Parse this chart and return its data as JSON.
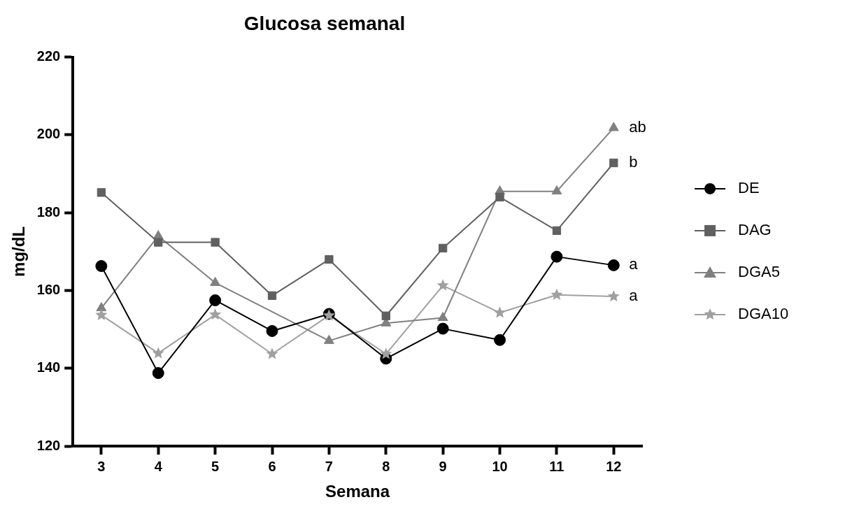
{
  "chart_data": {
    "type": "line",
    "title": "Glucosa semanal",
    "xlabel": "Semana",
    "ylabel": "mg/dL",
    "categories": [
      "3",
      "4",
      "5",
      "6",
      "7",
      "8",
      "9",
      "10",
      "11",
      "12"
    ],
    "series": [
      {
        "name": "DE",
        "color": "#000000",
        "marker": "circle",
        "values": [
          166.3,
          138.8,
          157.5,
          149.6,
          154.0,
          142.5,
          150.2,
          147.3,
          168.7,
          166.5
        ]
      },
      {
        "name": "DAG",
        "color": "#606060",
        "marker": "square",
        "values": [
          185.2,
          172.4,
          172.4,
          158.7,
          168.0,
          153.5,
          170.9,
          184.0,
          175.4,
          192.8
        ]
      },
      {
        "name": "DGA5",
        "color": "#808080",
        "marker": "triangle",
        "values": [
          155.5,
          174.0,
          162.0,
          null,
          147.1,
          151.6,
          153.0,
          185.5,
          185.5,
          201.8
        ]
      },
      {
        "name": "DGA10",
        "color": "#a0a0a0",
        "marker": "star",
        "values": [
          153.7,
          143.9,
          153.8,
          143.7,
          153.6,
          143.7,
          161.3,
          154.3,
          158.9,
          158.5
        ]
      }
    ],
    "ylim": [
      120,
      220
    ],
    "yticks": [
      120,
      140,
      160,
      180,
      200,
      220
    ],
    "grid": false,
    "legend": "right",
    "line_style": "solid",
    "annotations": [
      {
        "text": "ab",
        "x": "12",
        "y": 201.8
      },
      {
        "text": "b",
        "x": "12",
        "y": 192.8
      },
      {
        "text": "a",
        "x": "12",
        "y": 166.5
      },
      {
        "text": "a",
        "x": "12",
        "y": 158.5
      }
    ]
  }
}
